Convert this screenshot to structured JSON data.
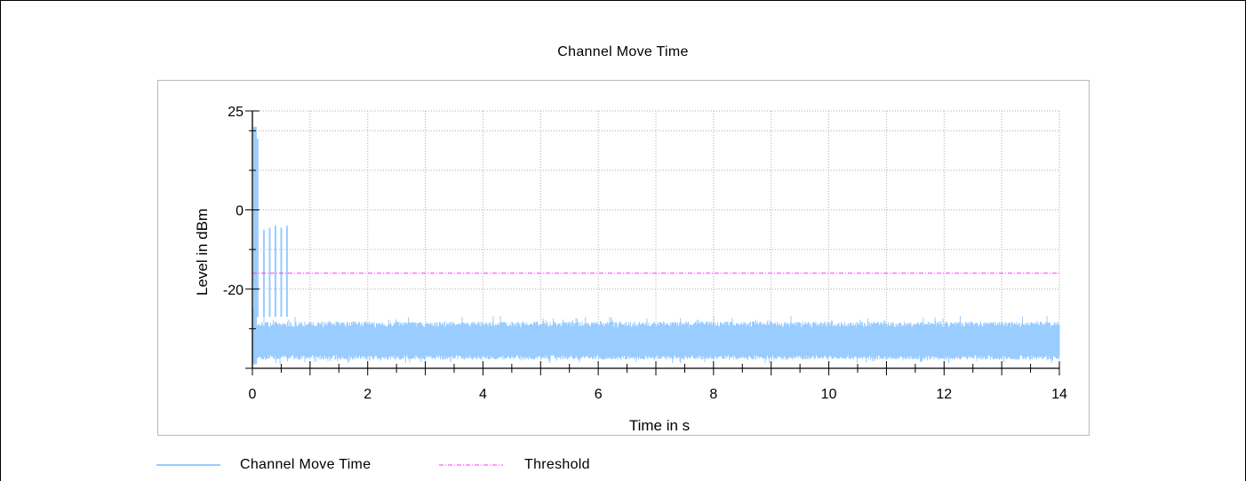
{
  "chart_data": {
    "type": "line",
    "title": "Channel Move Time",
    "xlabel": "Time in s",
    "ylabel": "Level in dBm",
    "xlim": [
      0,
      14
    ],
    "ylim": [
      -40,
      25
    ],
    "x_ticks": [
      "0",
      "2",
      "4",
      "6",
      "8",
      "10",
      "12",
      "14"
    ],
    "y_ticks": [
      "25",
      "0",
      "-20"
    ],
    "grid": true,
    "legend_position": "bottom-left",
    "series": [
      {
        "name": "Channel Move Time",
        "color": "#99ccff",
        "noise_floor_range_dbm": [
          -39,
          -27
        ],
        "bursts": [
          {
            "t": 0.03,
            "level": 21
          },
          {
            "t": 0.06,
            "level": 21
          },
          {
            "t": 0.09,
            "level": 18
          },
          {
            "t": 0.2,
            "level": -5
          },
          {
            "t": 0.3,
            "level": -4.5
          },
          {
            "t": 0.4,
            "level": -4
          },
          {
            "t": 0.5,
            "level": -4.5
          },
          {
            "t": 0.6,
            "level": -4
          }
        ]
      },
      {
        "name": "Threshold",
        "color": "#ff33ff",
        "values": [
          -16,
          -16
        ]
      }
    ]
  },
  "legend": {
    "items": [
      {
        "label": "Channel Move Time",
        "color": "#99ccff",
        "style": "solid"
      },
      {
        "label": "Threshold",
        "color": "#ff33ff",
        "style": "dash-dot"
      }
    ]
  }
}
